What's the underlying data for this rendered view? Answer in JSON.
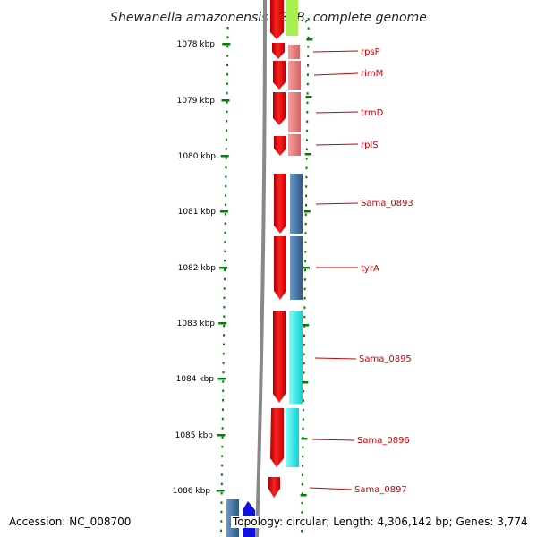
{
  "title": "Shewanella amazonensis SB2B, complete genome",
  "accession": "Accession: NC_008700",
  "topology": "Topology: circular; Length: 4,306,142 bp; Genes: 3,774",
  "ticks": [
    "1078 kbp",
    "1079 kbp",
    "1080 kbp",
    "1081 kbp",
    "1082 kbp",
    "1083 kbp",
    "1084 kbp",
    "1085 kbp",
    "1086 kbp"
  ],
  "genes": [
    "rpsP",
    "rimM",
    "trmD",
    "rplS",
    "Sama_0893",
    "tyrA",
    "Sama_0895",
    "Sama_0896",
    "Sama_0897"
  ],
  "colors": {
    "backbone": "#888888",
    "cds": "#ff0000",
    "rna_light": "#e88080",
    "steelblue": "#4a78a8",
    "cyan": "#22e8e8",
    "lime": "#a8f050",
    "blue": "#1010e0",
    "tick": "#008000",
    "label": "#cc0000"
  }
}
